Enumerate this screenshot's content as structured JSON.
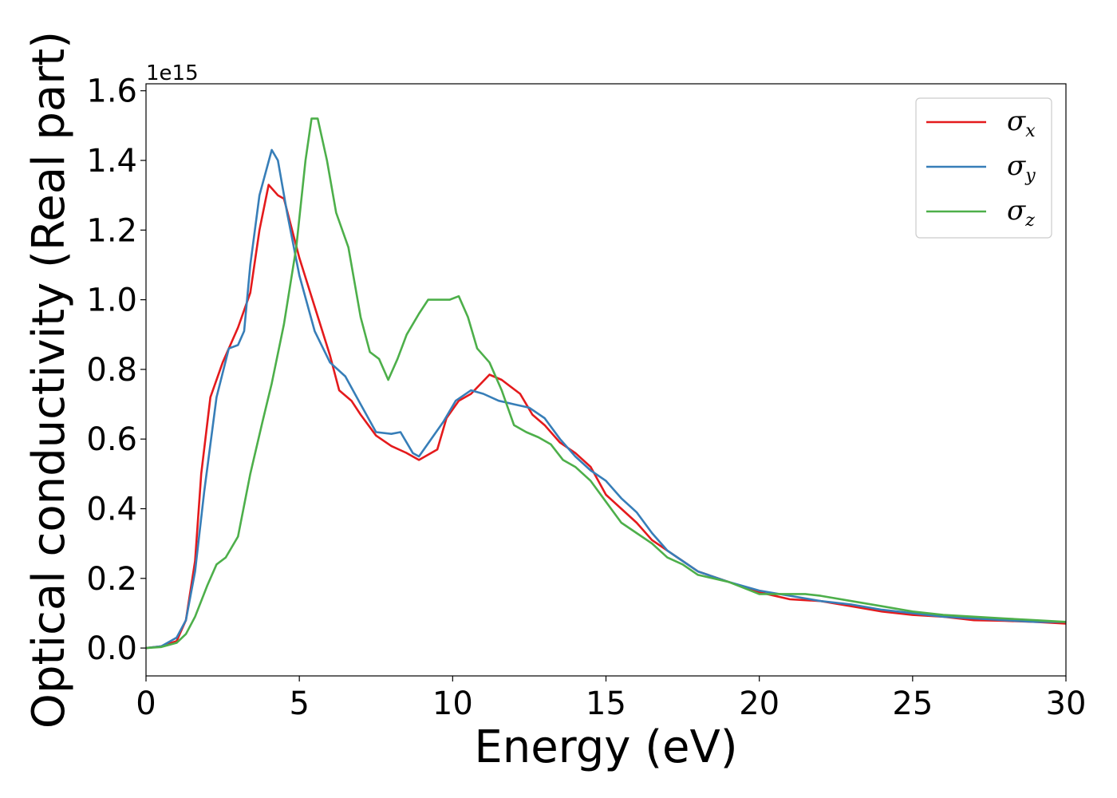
{
  "chart_data": {
    "type": "line",
    "title": "",
    "xlabel": "Energy (eV)",
    "ylabel": "Optical conductivity (Real part)",
    "y_offset_label": "1e15",
    "xlim": [
      0,
      30
    ],
    "ylim": [
      -0.08,
      1.62
    ],
    "x_ticks": [
      0,
      5,
      10,
      15,
      20,
      25,
      30
    ],
    "x_tick_labels": [
      "0",
      "5",
      "10",
      "15",
      "20",
      "25",
      "30"
    ],
    "y_ticks": [
      0.0,
      0.2,
      0.4,
      0.6,
      0.8,
      1.0,
      1.2,
      1.4,
      1.6
    ],
    "y_tick_labels": [
      "0.0",
      "0.2",
      "0.4",
      "0.6",
      "0.8",
      "1.0",
      "1.2",
      "1.4",
      "1.6"
    ],
    "grid": false,
    "legend_position": "top-right",
    "series": [
      {
        "name": "σx",
        "symbol": "σ",
        "subscript": "x",
        "color": "#e41a1c",
        "points": [
          [
            0,
            0
          ],
          [
            0.5,
            0.005
          ],
          [
            1.0,
            0.02
          ],
          [
            1.3,
            0.08
          ],
          [
            1.6,
            0.25
          ],
          [
            1.8,
            0.5
          ],
          [
            2.1,
            0.72
          ],
          [
            2.5,
            0.82
          ],
          [
            3.0,
            0.92
          ],
          [
            3.4,
            1.02
          ],
          [
            3.7,
            1.2
          ],
          [
            4.0,
            1.33
          ],
          [
            4.3,
            1.3
          ],
          [
            4.5,
            1.29
          ],
          [
            5.0,
            1.12
          ],
          [
            5.5,
            0.98
          ],
          [
            6.0,
            0.84
          ],
          [
            6.3,
            0.74
          ],
          [
            6.7,
            0.71
          ],
          [
            7.0,
            0.67
          ],
          [
            7.5,
            0.61
          ],
          [
            8.0,
            0.58
          ],
          [
            8.5,
            0.56
          ],
          [
            8.9,
            0.54
          ],
          [
            9.5,
            0.57
          ],
          [
            9.8,
            0.66
          ],
          [
            10.2,
            0.71
          ],
          [
            10.6,
            0.73
          ],
          [
            11.2,
            0.785
          ],
          [
            11.6,
            0.77
          ],
          [
            12.2,
            0.73
          ],
          [
            12.6,
            0.67
          ],
          [
            13.0,
            0.64
          ],
          [
            13.5,
            0.59
          ],
          [
            14.0,
            0.56
          ],
          [
            14.5,
            0.52
          ],
          [
            15.0,
            0.44
          ],
          [
            15.5,
            0.4
          ],
          [
            16.0,
            0.36
          ],
          [
            16.5,
            0.31
          ],
          [
            17.0,
            0.28
          ],
          [
            17.5,
            0.25
          ],
          [
            18.0,
            0.22
          ],
          [
            19.0,
            0.19
          ],
          [
            20.0,
            0.16
          ],
          [
            21.0,
            0.14
          ],
          [
            22.0,
            0.135
          ],
          [
            23.0,
            0.12
          ],
          [
            24.0,
            0.105
          ],
          [
            25.0,
            0.095
          ],
          [
            26.0,
            0.09
          ],
          [
            27.0,
            0.08
          ],
          [
            28.0,
            0.078
          ],
          [
            29.0,
            0.075
          ],
          [
            30.0,
            0.07
          ]
        ]
      },
      {
        "name": "σy",
        "symbol": "σ",
        "subscript": "y",
        "color": "#377eb8",
        "points": [
          [
            0,
            0
          ],
          [
            0.5,
            0.005
          ],
          [
            1.0,
            0.03
          ],
          [
            1.3,
            0.08
          ],
          [
            1.6,
            0.22
          ],
          [
            1.9,
            0.45
          ],
          [
            2.3,
            0.72
          ],
          [
            2.7,
            0.86
          ],
          [
            3.0,
            0.87
          ],
          [
            3.2,
            0.91
          ],
          [
            3.4,
            1.1
          ],
          [
            3.7,
            1.3
          ],
          [
            4.1,
            1.43
          ],
          [
            4.3,
            1.4
          ],
          [
            4.6,
            1.25
          ],
          [
            5.0,
            1.07
          ],
          [
            5.5,
            0.91
          ],
          [
            6.0,
            0.82
          ],
          [
            6.5,
            0.78
          ],
          [
            7.0,
            0.7
          ],
          [
            7.5,
            0.62
          ],
          [
            8.0,
            0.615
          ],
          [
            8.3,
            0.62
          ],
          [
            8.7,
            0.56
          ],
          [
            8.9,
            0.55
          ],
          [
            9.3,
            0.6
          ],
          [
            9.7,
            0.65
          ],
          [
            10.1,
            0.71
          ],
          [
            10.6,
            0.74
          ],
          [
            11.0,
            0.73
          ],
          [
            11.5,
            0.71
          ],
          [
            12.0,
            0.7
          ],
          [
            12.5,
            0.69
          ],
          [
            13.0,
            0.66
          ],
          [
            13.5,
            0.6
          ],
          [
            14.0,
            0.55
          ],
          [
            14.5,
            0.51
          ],
          [
            15.0,
            0.48
          ],
          [
            15.5,
            0.43
          ],
          [
            16.0,
            0.39
          ],
          [
            16.5,
            0.33
          ],
          [
            17.0,
            0.28
          ],
          [
            17.5,
            0.25
          ],
          [
            18.0,
            0.22
          ],
          [
            19.0,
            0.19
          ],
          [
            20.0,
            0.165
          ],
          [
            21.0,
            0.15
          ],
          [
            22.0,
            0.135
          ],
          [
            23.0,
            0.125
          ],
          [
            24.0,
            0.11
          ],
          [
            25.0,
            0.1
          ],
          [
            26.0,
            0.09
          ],
          [
            27.0,
            0.085
          ],
          [
            28.0,
            0.08
          ],
          [
            29.0,
            0.075
          ],
          [
            30.0,
            0.075
          ]
        ]
      },
      {
        "name": "σz",
        "symbol": "σ",
        "subscript": "z",
        "color": "#4daf4a",
        "points": [
          [
            0,
            0
          ],
          [
            0.5,
            0.003
          ],
          [
            1.0,
            0.015
          ],
          [
            1.3,
            0.04
          ],
          [
            1.6,
            0.09
          ],
          [
            2.0,
            0.18
          ],
          [
            2.3,
            0.24
          ],
          [
            2.6,
            0.26
          ],
          [
            3.0,
            0.32
          ],
          [
            3.4,
            0.5
          ],
          [
            3.8,
            0.65
          ],
          [
            4.1,
            0.76
          ],
          [
            4.5,
            0.93
          ],
          [
            4.9,
            1.15
          ],
          [
            5.2,
            1.4
          ],
          [
            5.4,
            1.52
          ],
          [
            5.6,
            1.52
          ],
          [
            5.9,
            1.4
          ],
          [
            6.2,
            1.25
          ],
          [
            6.6,
            1.15
          ],
          [
            7.0,
            0.95
          ],
          [
            7.3,
            0.85
          ],
          [
            7.6,
            0.83
          ],
          [
            7.9,
            0.77
          ],
          [
            8.2,
            0.83
          ],
          [
            8.5,
            0.9
          ],
          [
            8.9,
            0.96
          ],
          [
            9.2,
            1.0
          ],
          [
            9.6,
            1.0
          ],
          [
            9.9,
            1.0
          ],
          [
            10.2,
            1.01
          ],
          [
            10.5,
            0.95
          ],
          [
            10.8,
            0.86
          ],
          [
            11.2,
            0.82
          ],
          [
            11.6,
            0.74
          ],
          [
            12.0,
            0.64
          ],
          [
            12.4,
            0.62
          ],
          [
            12.8,
            0.605
          ],
          [
            13.2,
            0.585
          ],
          [
            13.6,
            0.54
          ],
          [
            14.0,
            0.52
          ],
          [
            14.5,
            0.48
          ],
          [
            15.0,
            0.42
          ],
          [
            15.5,
            0.36
          ],
          [
            16.0,
            0.33
          ],
          [
            16.5,
            0.3
          ],
          [
            17.0,
            0.26
          ],
          [
            17.5,
            0.24
          ],
          [
            18.0,
            0.21
          ],
          [
            19.0,
            0.19
          ],
          [
            20.0,
            0.155
          ],
          [
            21.0,
            0.155
          ],
          [
            21.5,
            0.155
          ],
          [
            22.0,
            0.15
          ],
          [
            23.0,
            0.135
          ],
          [
            24.0,
            0.12
          ],
          [
            25.0,
            0.105
          ],
          [
            26.0,
            0.095
          ],
          [
            27.0,
            0.09
          ],
          [
            28.0,
            0.085
          ],
          [
            29.0,
            0.08
          ],
          [
            30.0,
            0.075
          ]
        ]
      }
    ]
  }
}
